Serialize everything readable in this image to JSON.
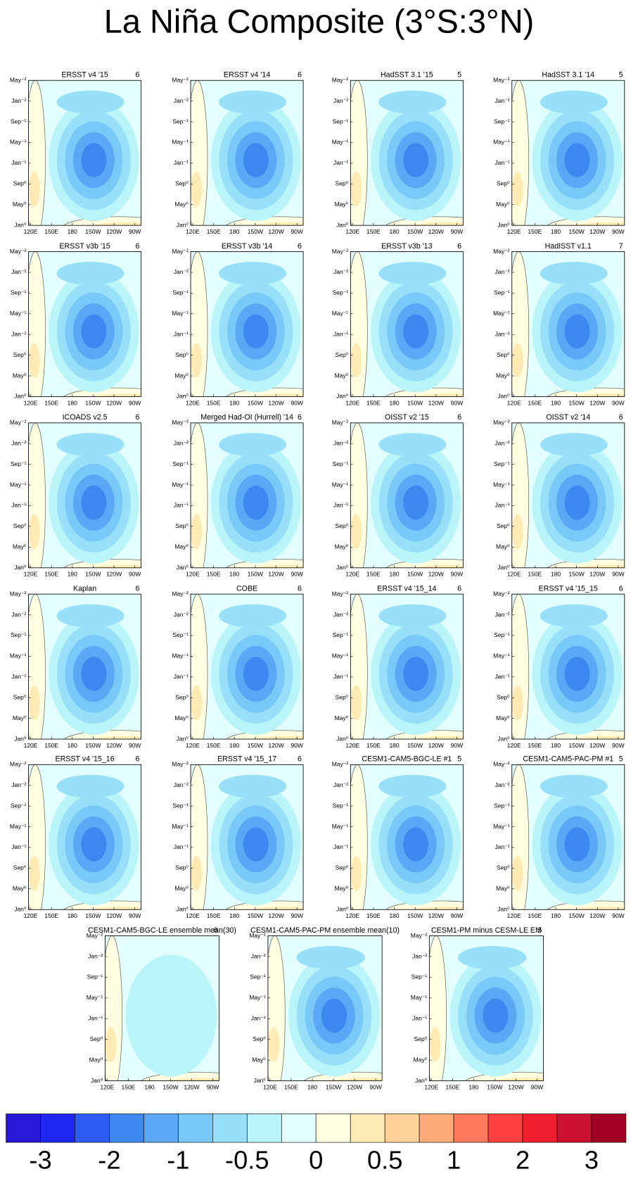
{
  "title": "La Niña Composite (3°S:3°N)",
  "panels": [
    {
      "title": "ERSST v4 '15",
      "count": 6
    },
    {
      "title": "ERSST v4 '14",
      "count": 6
    },
    {
      "title": "HadSST 3.1 '15",
      "count": 5
    },
    {
      "title": "HadSST 3.1 '14",
      "count": 5
    },
    {
      "title": "ERSST v3b '15",
      "count": 6
    },
    {
      "title": "ERSST v3b '14",
      "count": 6
    },
    {
      "title": "ERSST v3b '13",
      "count": 6
    },
    {
      "title": "HadISST v1.1",
      "count": 7
    },
    {
      "title": "ICOADS v2.5",
      "count": 6
    },
    {
      "title": "Merged Had-OI (Hurrell) '14",
      "count": 6
    },
    {
      "title": "OISST v2 '15",
      "count": 6
    },
    {
      "title": "OISST v2 '14",
      "count": 6
    },
    {
      "title": "Kaplan",
      "count": 6
    },
    {
      "title": "COBE",
      "count": 6
    },
    {
      "title": "ERSST v4 '15_14",
      "count": 6
    },
    {
      "title": "ERSST v4 '15_15",
      "count": 6
    },
    {
      "title": "ERSST v4 '15_16",
      "count": 6
    },
    {
      "title": "ERSST v4 '15_17",
      "count": 6
    },
    {
      "title": "CESM1-CAM5-BGC-LE #1",
      "count": 5
    },
    {
      "title": "CESM1-CAM5-PAC-PM #1",
      "count": 5
    },
    {
      "title": "CESM1-CAM5-BGC-LE ensemble mean(30)",
      "count": 6
    },
    {
      "title": "CESM1-CAM5-PAC-PM ensemble mean(10)"
    },
    {
      "title": "CESM1-PM minus CESM-LE EM",
      "count": 5
    }
  ],
  "yticks": [
    "May⁻²",
    "Jan⁻²",
    "Sep⁻¹",
    "May⁻¹",
    "Jan⁻¹",
    "Sep⁰",
    "May⁰",
    "Jan⁰"
  ],
  "xticks": [
    "120E",
    "150E",
    "180",
    "150W",
    "120W",
    "90W"
  ],
  "colorbar": {
    "colors": [
      "#2a18d8",
      "#1e28f0",
      "#2c5cf5",
      "#3c88f0",
      "#5aa8f5",
      "#78c8f8",
      "#98e0fa",
      "#b8f4f8",
      "#e2fefe",
      "#fffee0",
      "#ffeab4",
      "#ffd29a",
      "#ffaa78",
      "#ff7a5c",
      "#ff4040",
      "#f02030",
      "#cc1030",
      "#a00020"
    ],
    "labels": [
      -3,
      -2,
      -1,
      -0.5,
      0,
      0.5,
      1,
      2,
      3
    ]
  }
}
